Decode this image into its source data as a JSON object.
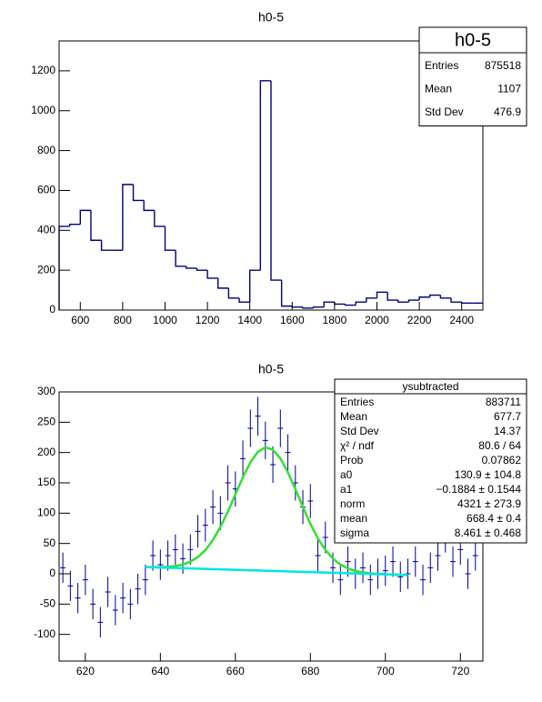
{
  "chart_data": [
    {
      "type": "histogram",
      "title": "h0-5",
      "color": "#000080",
      "bins": [
        500,
        550,
        600,
        650,
        700,
        750,
        800,
        850,
        900,
        950,
        1000,
        1050,
        1100,
        1150,
        1200,
        1250,
        1300,
        1350,
        1400,
        1450,
        1500,
        1550,
        1600,
        1650,
        1700,
        1750,
        1800,
        1850,
        1900,
        1950,
        2000,
        2050,
        2100,
        2150,
        2200,
        2250,
        2300,
        2350,
        2400,
        2450,
        2500
      ],
      "counts": [
        420,
        430,
        500,
        350,
        300,
        300,
        630,
        550,
        500,
        420,
        300,
        220,
        210,
        200,
        160,
        110,
        60,
        40,
        200,
        1150,
        150,
        20,
        15,
        10,
        15,
        40,
        30,
        25,
        40,
        60,
        90,
        50,
        40,
        50,
        65,
        75,
        60,
        40,
        35,
        35
      ],
      "xlim": [
        500,
        2500
      ],
      "ylim": [
        0,
        1350
      ],
      "xticks": [
        600,
        800,
        1000,
        1200,
        1400,
        1600,
        1800,
        2000,
        2200,
        2400
      ],
      "yticks": [
        0,
        200,
        400,
        600,
        800,
        1000,
        1200
      ],
      "stats": {
        "title": "h0-5",
        "rows": [
          {
            "label": "Entries",
            "value": 875518
          },
          {
            "label": "Mean",
            "value": 1107
          },
          {
            "label": "Std Dev",
            "value": 476.9
          }
        ]
      }
    },
    {
      "type": "errorbar",
      "title": "h0-5",
      "color": "#000099",
      "x": [
        614,
        616,
        618,
        620,
        622,
        624,
        626,
        628,
        630,
        632,
        634,
        636,
        638,
        640,
        642,
        644,
        646,
        648,
        650,
        652,
        654,
        656,
        658,
        660,
        662,
        664,
        666,
        668,
        670,
        672,
        674,
        676,
        678,
        680,
        682,
        684,
        686,
        688,
        690,
        692,
        694,
        696,
        698,
        700,
        702,
        704,
        706,
        708,
        710,
        712,
        714,
        716,
        718,
        720,
        722,
        724
      ],
      "values": [
        10,
        -20,
        -40,
        -10,
        -50,
        -80,
        -30,
        -60,
        -40,
        -50,
        -25,
        -10,
        30,
        15,
        30,
        40,
        25,
        40,
        70,
        80,
        110,
        100,
        150,
        140,
        190,
        240,
        260,
        220,
        180,
        240,
        200,
        150,
        110,
        120,
        30,
        60,
        10,
        -10,
        20,
        0,
        10,
        -10,
        0,
        5,
        20,
        -5,
        0,
        20,
        -10,
        10,
        30,
        60,
        20,
        40,
        0,
        30
      ],
      "errors": [
        25,
        25,
        25,
        25,
        25,
        25,
        25,
        25,
        25,
        25,
        25,
        25,
        25,
        25,
        25,
        25,
        25,
        25,
        27,
        27,
        28,
        28,
        29,
        29,
        30,
        31,
        32,
        31,
        30,
        31,
        30,
        29,
        28,
        28,
        26,
        26,
        25,
        25,
        25,
        25,
        25,
        25,
        25,
        25,
        25,
        25,
        25,
        25,
        25,
        25,
        25,
        25,
        25,
        25,
        25,
        25
      ],
      "curves": [
        {
          "color": "#33e033",
          "x": [
            636,
            638,
            640,
            642,
            644,
            646,
            648,
            650,
            652,
            654,
            656,
            658,
            660,
            662,
            664,
            666,
            668,
            670,
            672,
            674,
            676,
            678,
            680,
            682,
            684,
            686,
            688,
            690,
            692,
            694,
            696,
            698,
            700,
            702,
            704,
            706
          ],
          "values": [
            11.2,
            11.0,
            11.0,
            11.5,
            12.8,
            15.3,
            19.9,
            27.6,
            39.2,
            55.6,
            77.0,
            102.6,
            131.0,
            159.2,
            183.8,
            201.2,
            208.6,
            204.7,
            190.3,
            167.5,
            139.6,
            110.2,
            82.4,
            58.4,
            39.3,
            25.2,
            15.3,
            8.7,
            4.7,
            2.3,
            0.8,
            -0.15,
            -0.8,
            -1.3,
            -1.74,
            -2.11
          ]
        },
        {
          "color": "#00e5e5",
          "x": [
            636,
            706
          ],
          "values": [
            11.08,
            -2.11
          ]
        }
      ],
      "xlim": [
        613,
        726
      ],
      "ylim": [
        -144,
        300
      ],
      "xticks": [
        620,
        640,
        660,
        680,
        700,
        720
      ],
      "yticks": [
        -100,
        -50,
        0,
        50,
        100,
        150,
        200,
        250,
        300
      ],
      "stats": {
        "title": "ysubtracted",
        "rows": [
          {
            "label": "Entries",
            "value": 883711
          },
          {
            "label": "Mean",
            "value": 677.7
          },
          {
            "label": "Std Dev",
            "value": 14.37
          },
          {
            "label": "χ² / ndf",
            "value": "80.6 / 64"
          },
          {
            "label": "Prob",
            "value": 0.07862
          },
          {
            "label": "a0",
            "value": "130.9 ± 104.8"
          },
          {
            "label": "a1",
            "value": "−0.1884 ± 0.1544"
          },
          {
            "label": "norm",
            "value": "4321 ± 273.9"
          },
          {
            "label": "mean",
            "value": "668.4 ± 0.4"
          },
          {
            "label": "sigma",
            "value": "8.461 ± 0.468"
          }
        ]
      }
    }
  ]
}
